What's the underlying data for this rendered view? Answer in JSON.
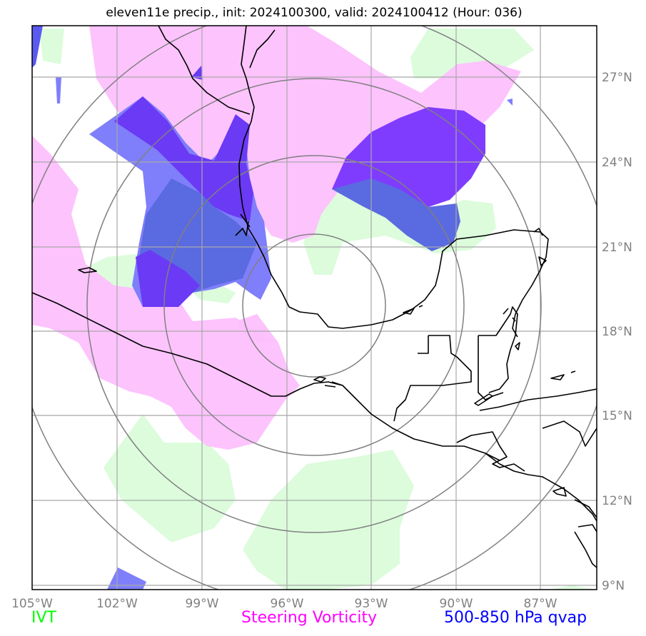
{
  "title": "eleven11e precip., init: 2024100300, valid: 2024100412 (Hour: 036)",
  "lat_labels": [
    "27°N",
    "24°N",
    "21°N",
    "18°N",
    "15°N",
    "12°N",
    "9°N"
  ],
  "lon_labels": [
    "105°W",
    "102°W",
    "99°W",
    "96°W",
    "93°W",
    "90°W",
    "87°W"
  ],
  "legend": {
    "ivt": "IVT",
    "steering_vorticity": "Steering Vorticity",
    "qvap": "500-850 hPa qvap"
  },
  "colors": {
    "ivt": "#00ff00",
    "steering_vorticity": "#ff00ff",
    "qvap": "#0000ff",
    "ivt_fill": "#dcfcdc",
    "vort_fill": "#fdc0fd",
    "qvap_fill": "#7f7ffb",
    "qvap_dark_fill": "#7f3cff",
    "grid": "#a0a0a0",
    "range_rings": "#808080",
    "label_gray": "#808080"
  }
}
